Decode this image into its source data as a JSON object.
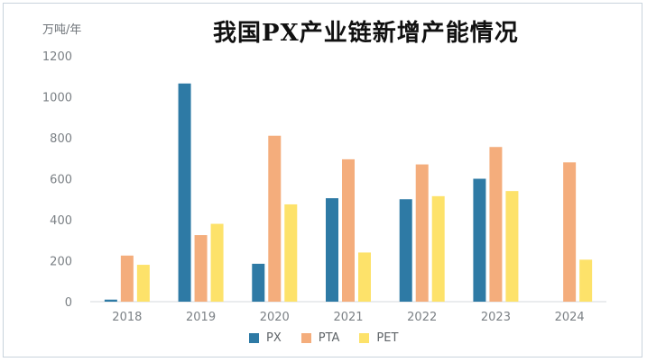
{
  "chart_data": {
    "type": "bar",
    "title": "我国PX产业链新增产能情况",
    "ylabel": "万吨/年",
    "xlabel": "",
    "categories": [
      "2018",
      "2019",
      "2020",
      "2021",
      "2022",
      "2023",
      "2024"
    ],
    "ylim": [
      0,
      1200
    ],
    "yticks": [
      0,
      200,
      400,
      600,
      800,
      1000,
      1200
    ],
    "legend_position": "bottom",
    "grid": false,
    "series": [
      {
        "name": "PX",
        "color": "#2e7aa5",
        "values": [
          10,
          1065,
          185,
          505,
          500,
          600,
          null
        ]
      },
      {
        "name": "PTA",
        "color": "#f4ad7c",
        "values": [
          225,
          325,
          810,
          695,
          670,
          755,
          680
        ]
      },
      {
        "name": "PET",
        "color": "#fde26a",
        "values": [
          180,
          380,
          475,
          240,
          515,
          540,
          205
        ]
      }
    ]
  }
}
